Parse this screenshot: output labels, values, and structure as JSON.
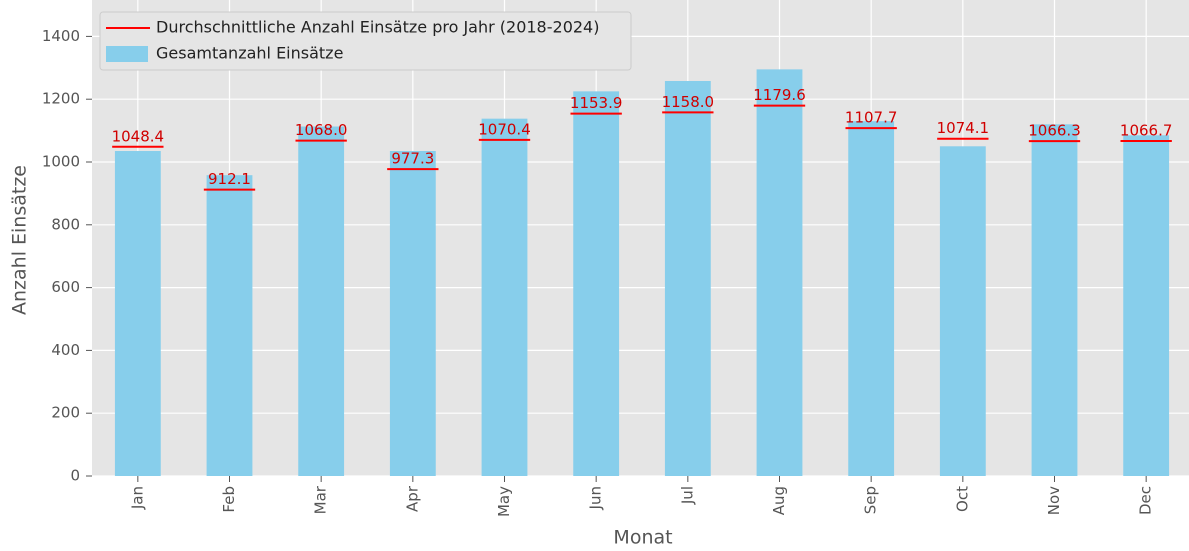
{
  "chart_data": {
    "type": "bar",
    "categories": [
      "Jan",
      "Feb",
      "Mar",
      "Apr",
      "May",
      "Jun",
      "Jul",
      "Aug",
      "Sep",
      "Oct",
      "Nov",
      "Dec"
    ],
    "series": [
      {
        "name": "Gesamtanzahl Einsätze",
        "type": "bar",
        "color": "#87ceeb",
        "values": [
          1035,
          958,
          1113,
          1035,
          1138,
          1225,
          1258,
          1295,
          1130,
          1050,
          1120,
          1085
        ]
      },
      {
        "name": "Durchschnittliche Anzahl Einsätze pro Jahr (2018-2024)",
        "type": "line",
        "color": "#ff0000",
        "values": [
          1048.4,
          912.1,
          1068.0,
          977.3,
          1070.4,
          1153.9,
          1158.0,
          1179.6,
          1107.7,
          1074.1,
          1066.3,
          1066.7
        ],
        "value_labels": [
          "1048.4",
          "912.1",
          "1068.0",
          "977.3",
          "1070.4",
          "1153.9",
          "1158.0",
          "1179.6",
          "1107.7",
          "1074.1",
          "1066.3",
          "1066.7"
        ]
      }
    ],
    "x_label": "Monat",
    "y_label": "Anzahl Einsätze",
    "ylim": [
      0,
      1500
    ],
    "yticks": [
      0,
      200,
      400,
      600,
      800,
      1000,
      1200,
      1400
    ],
    "grid": true,
    "legend": "upper left"
  }
}
